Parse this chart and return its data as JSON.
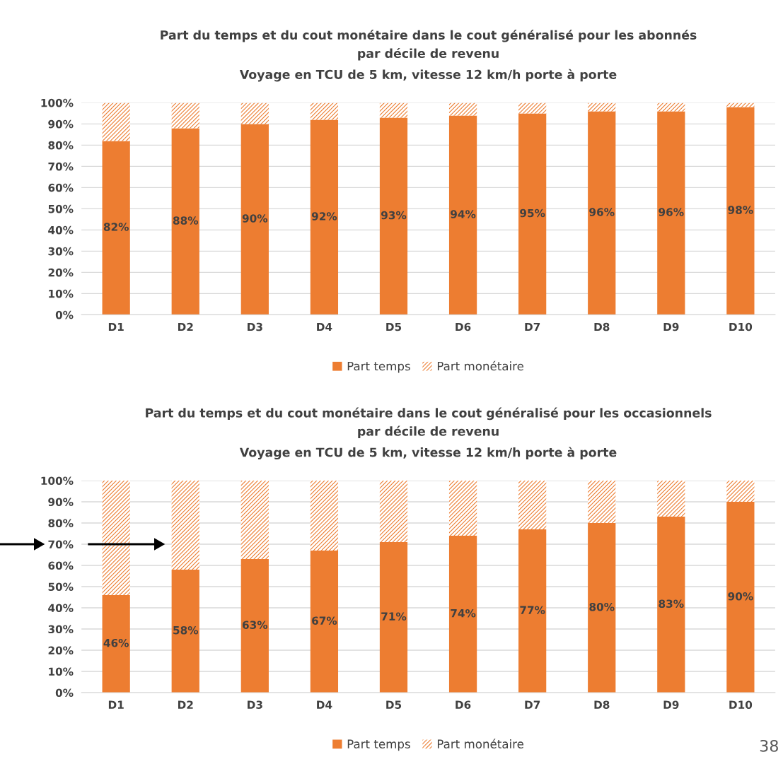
{
  "chart_data": [
    {
      "type": "bar",
      "stacked": true,
      "title": "Part du temps et du cout monétaire dans le cout généralisé pour les abonnés\npar décile de revenu",
      "subtitle": "Voyage en TCU de 5 km, vitesse 12 km/h porte à porte",
      "categories": [
        "D1",
        "D2",
        "D3",
        "D4",
        "D5",
        "D6",
        "D7",
        "D8",
        "D9",
        "D10"
      ],
      "series": [
        {
          "name": "Part temps",
          "color": "#ed7d31",
          "values": [
            82,
            88,
            90,
            92,
            93,
            94,
            95,
            96,
            96,
            98
          ],
          "value_labels": [
            "82%",
            "88%",
            "90%",
            "92%",
            "93%",
            "94%",
            "95%",
            "96%",
            "96%",
            "98%"
          ]
        },
        {
          "name": "Part monétaire",
          "color": "#ed7d31",
          "values": [
            18,
            12,
            10,
            8,
            7,
            6,
            5,
            4,
            4,
            2
          ]
        }
      ],
      "ylim": [
        0,
        100
      ],
      "yticks": [
        {
          "value": 0,
          "label": "0%"
        },
        {
          "value": 10,
          "label": "10%"
        },
        {
          "value": 20,
          "label": "20%"
        },
        {
          "value": 30,
          "label": "30%"
        },
        {
          "value": 40,
          "label": "40%"
        },
        {
          "value": 50,
          "label": "50%"
        },
        {
          "value": 60,
          "label": "60%"
        },
        {
          "value": 70,
          "label": "70%"
        },
        {
          "value": 80,
          "label": "80%"
        },
        {
          "value": 90,
          "label": "90%"
        },
        {
          "value": 100,
          "label": "100%"
        }
      ],
      "grid": "y",
      "legend": "bottom"
    },
    {
      "type": "bar",
      "stacked": true,
      "title": "Part du temps et du cout monétaire dans le cout généralisé pour les occasionnels\npar décile de revenu",
      "subtitle": "Voyage en TCU de 5 km, vitesse 12 km/h porte à porte",
      "categories": [
        "D1",
        "D2",
        "D3",
        "D4",
        "D5",
        "D6",
        "D7",
        "D8",
        "D9",
        "D10"
      ],
      "series": [
        {
          "name": "Part temps",
          "color": "#ed7d31",
          "values": [
            46,
            58,
            63,
            67,
            71,
            74,
            77,
            80,
            83,
            90
          ],
          "value_labels": [
            "46%",
            "58%",
            "63%",
            "67%",
            "71%",
            "74%",
            "77%",
            "80%",
            "83%",
            "90%"
          ]
        },
        {
          "name": "Part monétaire",
          "color": "#ed7d31",
          "values": [
            54,
            42,
            37,
            33,
            29,
            26,
            23,
            20,
            17,
            10
          ]
        }
      ],
      "ylim": [
        0,
        100
      ],
      "yticks": [
        {
          "value": 0,
          "label": "0%"
        },
        {
          "value": 10,
          "label": "10%"
        },
        {
          "value": 20,
          "label": "20%"
        },
        {
          "value": 30,
          "label": "30%"
        },
        {
          "value": 40,
          "label": "40%"
        },
        {
          "value": 50,
          "label": "50%"
        },
        {
          "value": 60,
          "label": "60%"
        },
        {
          "value": 70,
          "label": "70%"
        },
        {
          "value": 80,
          "label": "80%"
        },
        {
          "value": 90,
          "label": "90%"
        },
        {
          "value": 100,
          "label": "100%"
        }
      ],
      "grid": "y",
      "legend": "bottom",
      "annotations": [
        "38"
      ]
    }
  ]
}
